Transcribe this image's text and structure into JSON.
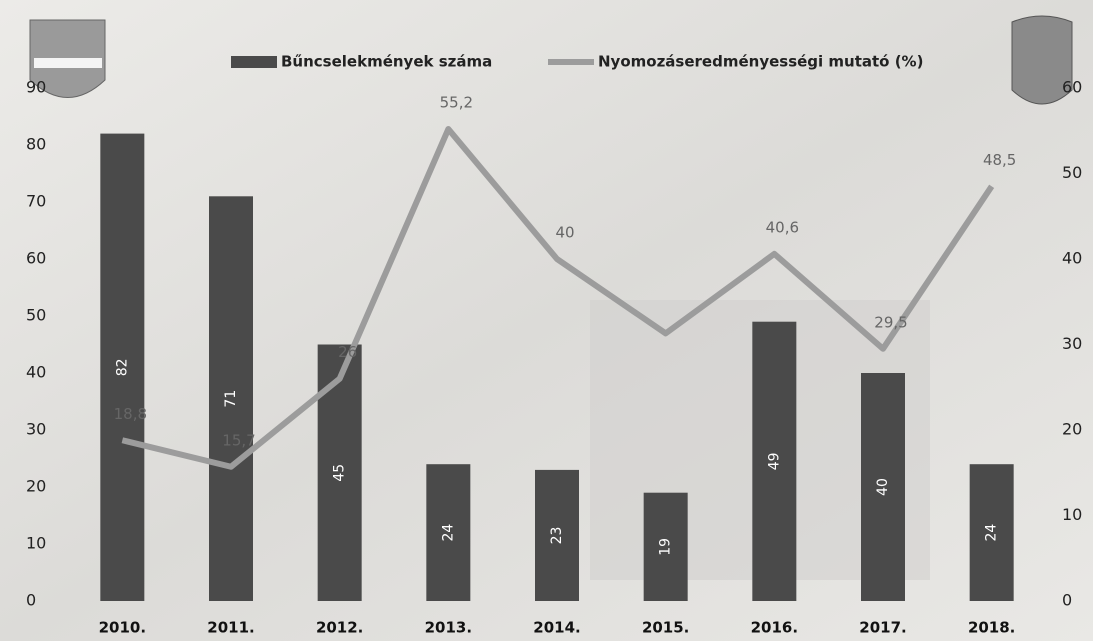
{
  "chart_data": {
    "type": "combo",
    "categories": [
      "2010.",
      "2011.",
      "2012.",
      "2013.",
      "2014.",
      "2015.",
      "2016.",
      "2017.",
      "2018."
    ],
    "series": [
      {
        "name": "Bűncselekmények száma",
        "type": "bar",
        "color": "#4a4a4a",
        "values": [
          82,
          71,
          45,
          24,
          23,
          19,
          49,
          40,
          24
        ]
      },
      {
        "name": "Nyomozáseredményességi mutató (%)",
        "type": "line",
        "axis": "y2",
        "color": "#9c9c9c",
        "values": [
          18.8,
          15.7,
          26,
          55.2,
          40,
          31.3,
          40.6,
          29.5,
          48.5
        ],
        "value_labels": [
          "18,8",
          "15,7",
          "26",
          "55,2",
          "40",
          null,
          "40,6",
          "29,5",
          "48,5"
        ]
      }
    ],
    "ylim": [
      0,
      90
    ],
    "yticks": [
      0,
      10,
      20,
      30,
      40,
      50,
      60,
      70,
      80,
      90
    ],
    "y2lim": [
      0,
      60
    ],
    "y2ticks": [
      0,
      10,
      20,
      30,
      40,
      50,
      60
    ],
    "grid": false
  }
}
